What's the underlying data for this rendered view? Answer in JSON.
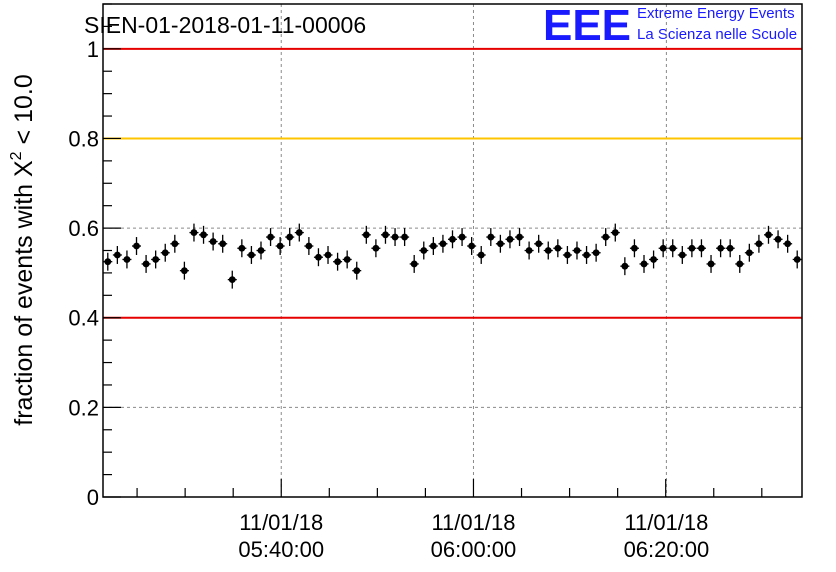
{
  "chart_data": {
    "type": "scatter",
    "title": "SIEN-01-2018-01-11-00006",
    "ylabel": "fraction of events with X² < 10.0",
    "ylabel_parts": {
      "prefix": "fraction of events with X",
      "sup": "2",
      "suffix": " < 10.0"
    },
    "ylim": [
      0,
      1.1
    ],
    "xlim": [
      0,
      1
    ],
    "x_axis_type": "time",
    "y_ticks": [
      {
        "value": 0,
        "label": "0"
      },
      {
        "value": 0.2,
        "label": "0.2"
      },
      {
        "value": 0.4,
        "label": "0.4"
      },
      {
        "value": 0.6,
        "label": "0.6"
      },
      {
        "value": 0.8,
        "label": "0.8"
      },
      {
        "value": 1.0,
        "label": "1"
      }
    ],
    "x_ticks": [
      {
        "pos": 0.255,
        "date": "11/01/18",
        "time": "05:40:00"
      },
      {
        "pos": 0.53,
        "date": "11/01/18",
        "time": "06:00:00"
      },
      {
        "pos": 0.806,
        "date": "11/01/18",
        "time": "06:20:00"
      }
    ],
    "grid": true,
    "reference_lines": [
      {
        "y": 1.0,
        "color": "#e60000"
      },
      {
        "y": 0.8,
        "color": "#ffc400"
      },
      {
        "y": 0.4,
        "color": "#e60000"
      }
    ],
    "series": [
      {
        "marker_color": "#000000",
        "y_error": 0.02,
        "values": [
          0.525,
          0.54,
          0.53,
          0.56,
          0.52,
          0.53,
          0.545,
          0.565,
          0.505,
          0.59,
          0.585,
          0.57,
          0.565,
          0.485,
          0.555,
          0.54,
          0.55,
          0.58,
          0.56,
          0.58,
          0.59,
          0.56,
          0.535,
          0.54,
          0.525,
          0.53,
          0.505,
          0.585,
          0.555,
          0.585,
          0.58,
          0.58,
          0.52,
          0.55,
          0.56,
          0.565,
          0.575,
          0.58,
          0.56,
          0.54,
          0.58,
          0.565,
          0.575,
          0.58,
          0.55,
          0.565,
          0.55,
          0.555,
          0.54,
          0.55,
          0.54,
          0.545,
          0.58,
          0.59,
          0.515,
          0.555,
          0.52,
          0.53,
          0.555,
          0.555,
          0.54,
          0.555,
          0.555,
          0.52,
          0.555,
          0.555,
          0.52,
          0.545,
          0.565,
          0.585,
          0.575,
          0.565,
          0.53
        ]
      }
    ]
  },
  "logo": {
    "letters": "EEE",
    "line1": "Extreme Energy Events",
    "line2": "La Scienza nelle Scuole"
  }
}
